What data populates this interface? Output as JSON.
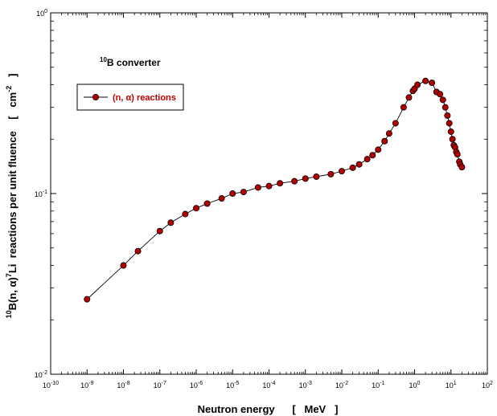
{
  "chart_data": {
    "type": "line",
    "x_scale": "log",
    "y_scale": "log",
    "xlim": [
      1e-10,
      100
    ],
    "ylim": [
      0.01,
      1
    ],
    "xlabel": "Neutron energy      [   MeV   ]",
    "ylabel": {
      "parts": [
        {
          "text": "10",
          "sup": true
        },
        {
          "text": "B(n, α)",
          "sup": false
        },
        {
          "text": "7",
          "sup": true
        },
        {
          "text": "Li  reactions per unit fluence    [   cm",
          "sup": false
        },
        {
          "text": "-2",
          "sup": true
        },
        {
          "text": "   ]",
          "sup": false
        }
      ]
    },
    "x_ticks": [
      {
        "base": "10",
        "exp": "-10",
        "value": 1e-10
      },
      {
        "base": "10",
        "exp": "-9",
        "value": 1e-09
      },
      {
        "base": "10",
        "exp": "-8",
        "value": 1e-08
      },
      {
        "base": "10",
        "exp": "-7",
        "value": 1e-07
      },
      {
        "base": "10",
        "exp": "-6",
        "value": 1e-06
      },
      {
        "base": "10",
        "exp": "-5",
        "value": 1e-05
      },
      {
        "base": "10",
        "exp": "-4",
        "value": 0.0001
      },
      {
        "base": "10",
        "exp": "-3",
        "value": 0.001
      },
      {
        "base": "10",
        "exp": "-2",
        "value": 0.01
      },
      {
        "base": "10",
        "exp": "-1",
        "value": 0.1
      },
      {
        "base": "10",
        "exp": "0",
        "value": 1
      },
      {
        "base": "10",
        "exp": "1",
        "value": 10
      },
      {
        "base": "10",
        "exp": "2",
        "value": 100
      }
    ],
    "y_ticks": [
      {
        "base": "10",
        "exp": "-2",
        "value": 0.01
      },
      {
        "base": "10",
        "exp": "-1",
        "value": 0.1
      },
      {
        "base": "10",
        "exp": "0",
        "value": 1
      }
    ],
    "annotation": {
      "sup": "10",
      "text": "B converter"
    },
    "legend_placement": "top-left",
    "grid": false,
    "series": [
      {
        "name": "(n, α) reactions",
        "color": "#b00000",
        "line_color": "#000000",
        "marker": "circle",
        "x": [
          1e-09,
          1e-08,
          2.5e-08,
          1e-07,
          2e-07,
          5e-07,
          1e-06,
          2e-06,
          5e-06,
          1e-05,
          2e-05,
          5e-05,
          0.0001,
          0.0002,
          0.0005,
          0.001,
          0.002,
          0.005,
          0.01,
          0.02,
          0.03,
          0.05,
          0.07,
          0.1,
          0.15,
          0.2,
          0.3,
          0.5,
          0.7,
          0.9,
          1.0,
          1.2,
          2.0,
          3.0,
          4.0,
          5.0,
          6.0,
          7.0,
          8.0,
          9.0,
          10.0,
          11.0,
          12.0,
          13.0,
          14.0,
          15.0,
          17.0,
          18.0,
          20.0
        ],
        "y": [
          0.026,
          0.04,
          0.048,
          0.062,
          0.069,
          0.077,
          0.083,
          0.088,
          0.094,
          0.1,
          0.102,
          0.108,
          0.11,
          0.114,
          0.117,
          0.121,
          0.124,
          0.128,
          0.133,
          0.139,
          0.145,
          0.155,
          0.163,
          0.175,
          0.195,
          0.215,
          0.245,
          0.3,
          0.34,
          0.37,
          0.38,
          0.4,
          0.42,
          0.41,
          0.365,
          0.355,
          0.33,
          0.3,
          0.27,
          0.245,
          0.22,
          0.2,
          0.185,
          0.18,
          0.17,
          0.165,
          0.15,
          0.145,
          0.14
        ]
      }
    ]
  }
}
